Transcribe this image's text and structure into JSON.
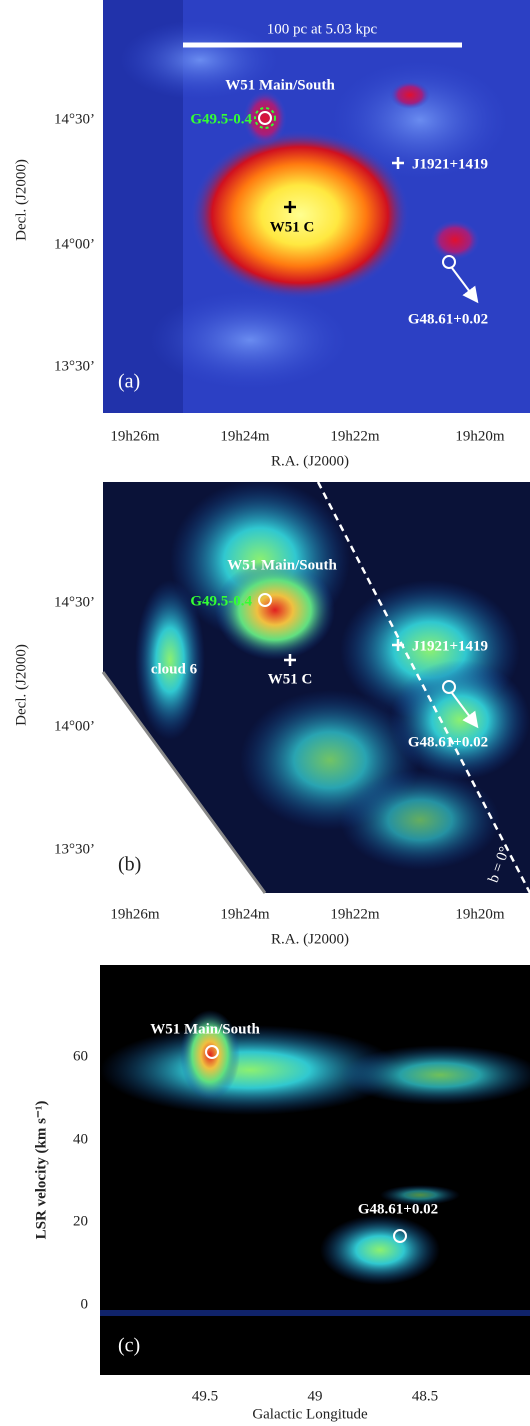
{
  "panels": [
    {
      "label": "(a)",
      "scale_bar": "100 pc at 5.03 kpc",
      "annotations": [
        "W51 Main/South",
        "G49.5-0.4",
        "J1921+1419",
        "W51 C",
        "G48.61+0.02"
      ],
      "y_axis": {
        "title": "Decl. (J2000)",
        "ticks": [
          "14°30’",
          "14°00’",
          "13°30’"
        ]
      },
      "x_axis": {
        "title": "R.A. (J2000)",
        "ticks": [
          "19h26m",
          "19h24m",
          "19h22m",
          "19h20m"
        ]
      }
    },
    {
      "label": "(b)",
      "annotations": [
        "W51 Main/South",
        "G49.5-0.4",
        "J1921+1419",
        "cloud 6",
        "W51 C",
        "G48.61+0.02",
        "b = 0°"
      ],
      "y_axis": {
        "title": "Decl. (J2000)",
        "ticks": [
          "14°30’",
          "14°00’",
          "13°30’"
        ]
      },
      "x_axis": {
        "title": "R.A. (J2000)",
        "ticks": [
          "19h26m",
          "19h24m",
          "19h22m",
          "19h20m"
        ]
      }
    },
    {
      "label": "(c)",
      "annotations": [
        "W51 Main/South",
        "G48.61+0.02"
      ],
      "y_axis": {
        "title": "LSR velocity (km s⁻¹)",
        "ticks": [
          "60",
          "40",
          "20",
          "0"
        ]
      },
      "x_axis": {
        "title": "Galactic Longitude",
        "ticks": [
          "49.5",
          "49",
          "48.5"
        ]
      }
    }
  ]
}
